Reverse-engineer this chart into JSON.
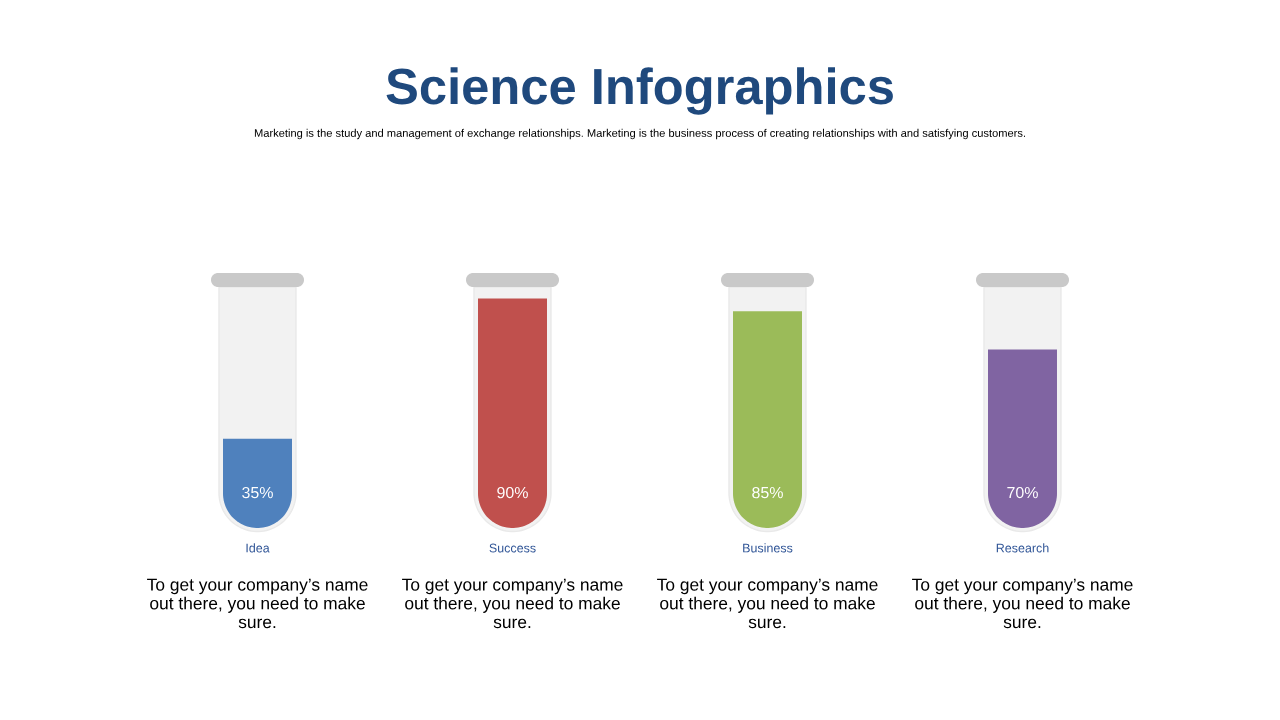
{
  "chart_data": {
    "type": "bar",
    "title": "Science Infographics",
    "subtitle": "Marketing is the study and management of exchange relationships. Marketing is the business process of creating relationships with and satisfying customers.",
    "categories": [
      "Idea",
      "Success",
      "Business",
      "Research"
    ],
    "values": [
      35,
      90,
      85,
      70
    ],
    "colors": [
      "#4f81bd",
      "#c0504d",
      "#9bbb59",
      "#8064a2"
    ],
    "value_labels": [
      "35%",
      "90%",
      "85%",
      "70%"
    ],
    "tick_labels": "x",
    "annotations": [
      "To get your company’s name\nout there, you need to make\nsure.",
      "To get your company’s name\nout there, you need to make\nsure.",
      "To get your company’s name\nout there, you need to make\nsure.",
      "To get your company’s name\nout there, you need to make\nsure."
    ]
  }
}
